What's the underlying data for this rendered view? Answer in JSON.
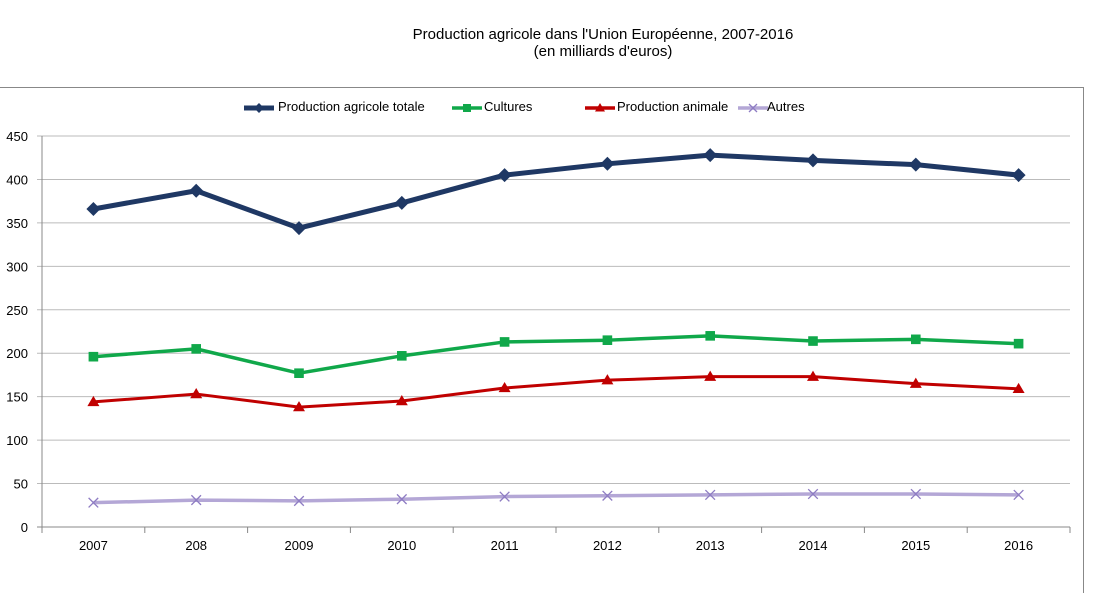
{
  "chart_data": {
    "type": "line",
    "title": "Production agricole dans l'Union Européenne, 2007-2016",
    "subtitle": "(en milliards d'euros)",
    "categories": [
      "2007",
      "208",
      "2009",
      "2010",
      "2011",
      "2012",
      "2013",
      "2014",
      "2015",
      "2016"
    ],
    "ylim": [
      0,
      450
    ],
    "yticks": [
      "0",
      "50",
      "100",
      "150",
      "200",
      "250",
      "300",
      "350",
      "400",
      "450"
    ],
    "grid": true,
    "legend_position": "top",
    "series": [
      {
        "name": "Production agricole totale",
        "color": "#1f3864",
        "marker": "diamond",
        "values": [
          366,
          387,
          344,
          373,
          405,
          418,
          428,
          422,
          417,
          405
        ]
      },
      {
        "name": "Cultures",
        "color": "#10a84a",
        "marker": "square",
        "values": [
          196,
          205,
          177,
          197,
          213,
          215,
          220,
          214,
          216,
          211
        ]
      },
      {
        "name": "Production animale",
        "color": "#c00000",
        "marker": "triangle",
        "values": [
          144,
          153,
          138,
          145,
          160,
          169,
          173,
          173,
          165,
          159
        ]
      },
      {
        "name": "Autres",
        "color": "#b4a7d6",
        "marker": "x",
        "values": [
          28,
          31,
          30,
          32,
          35,
          36,
          37,
          38,
          38,
          37
        ]
      }
    ]
  }
}
